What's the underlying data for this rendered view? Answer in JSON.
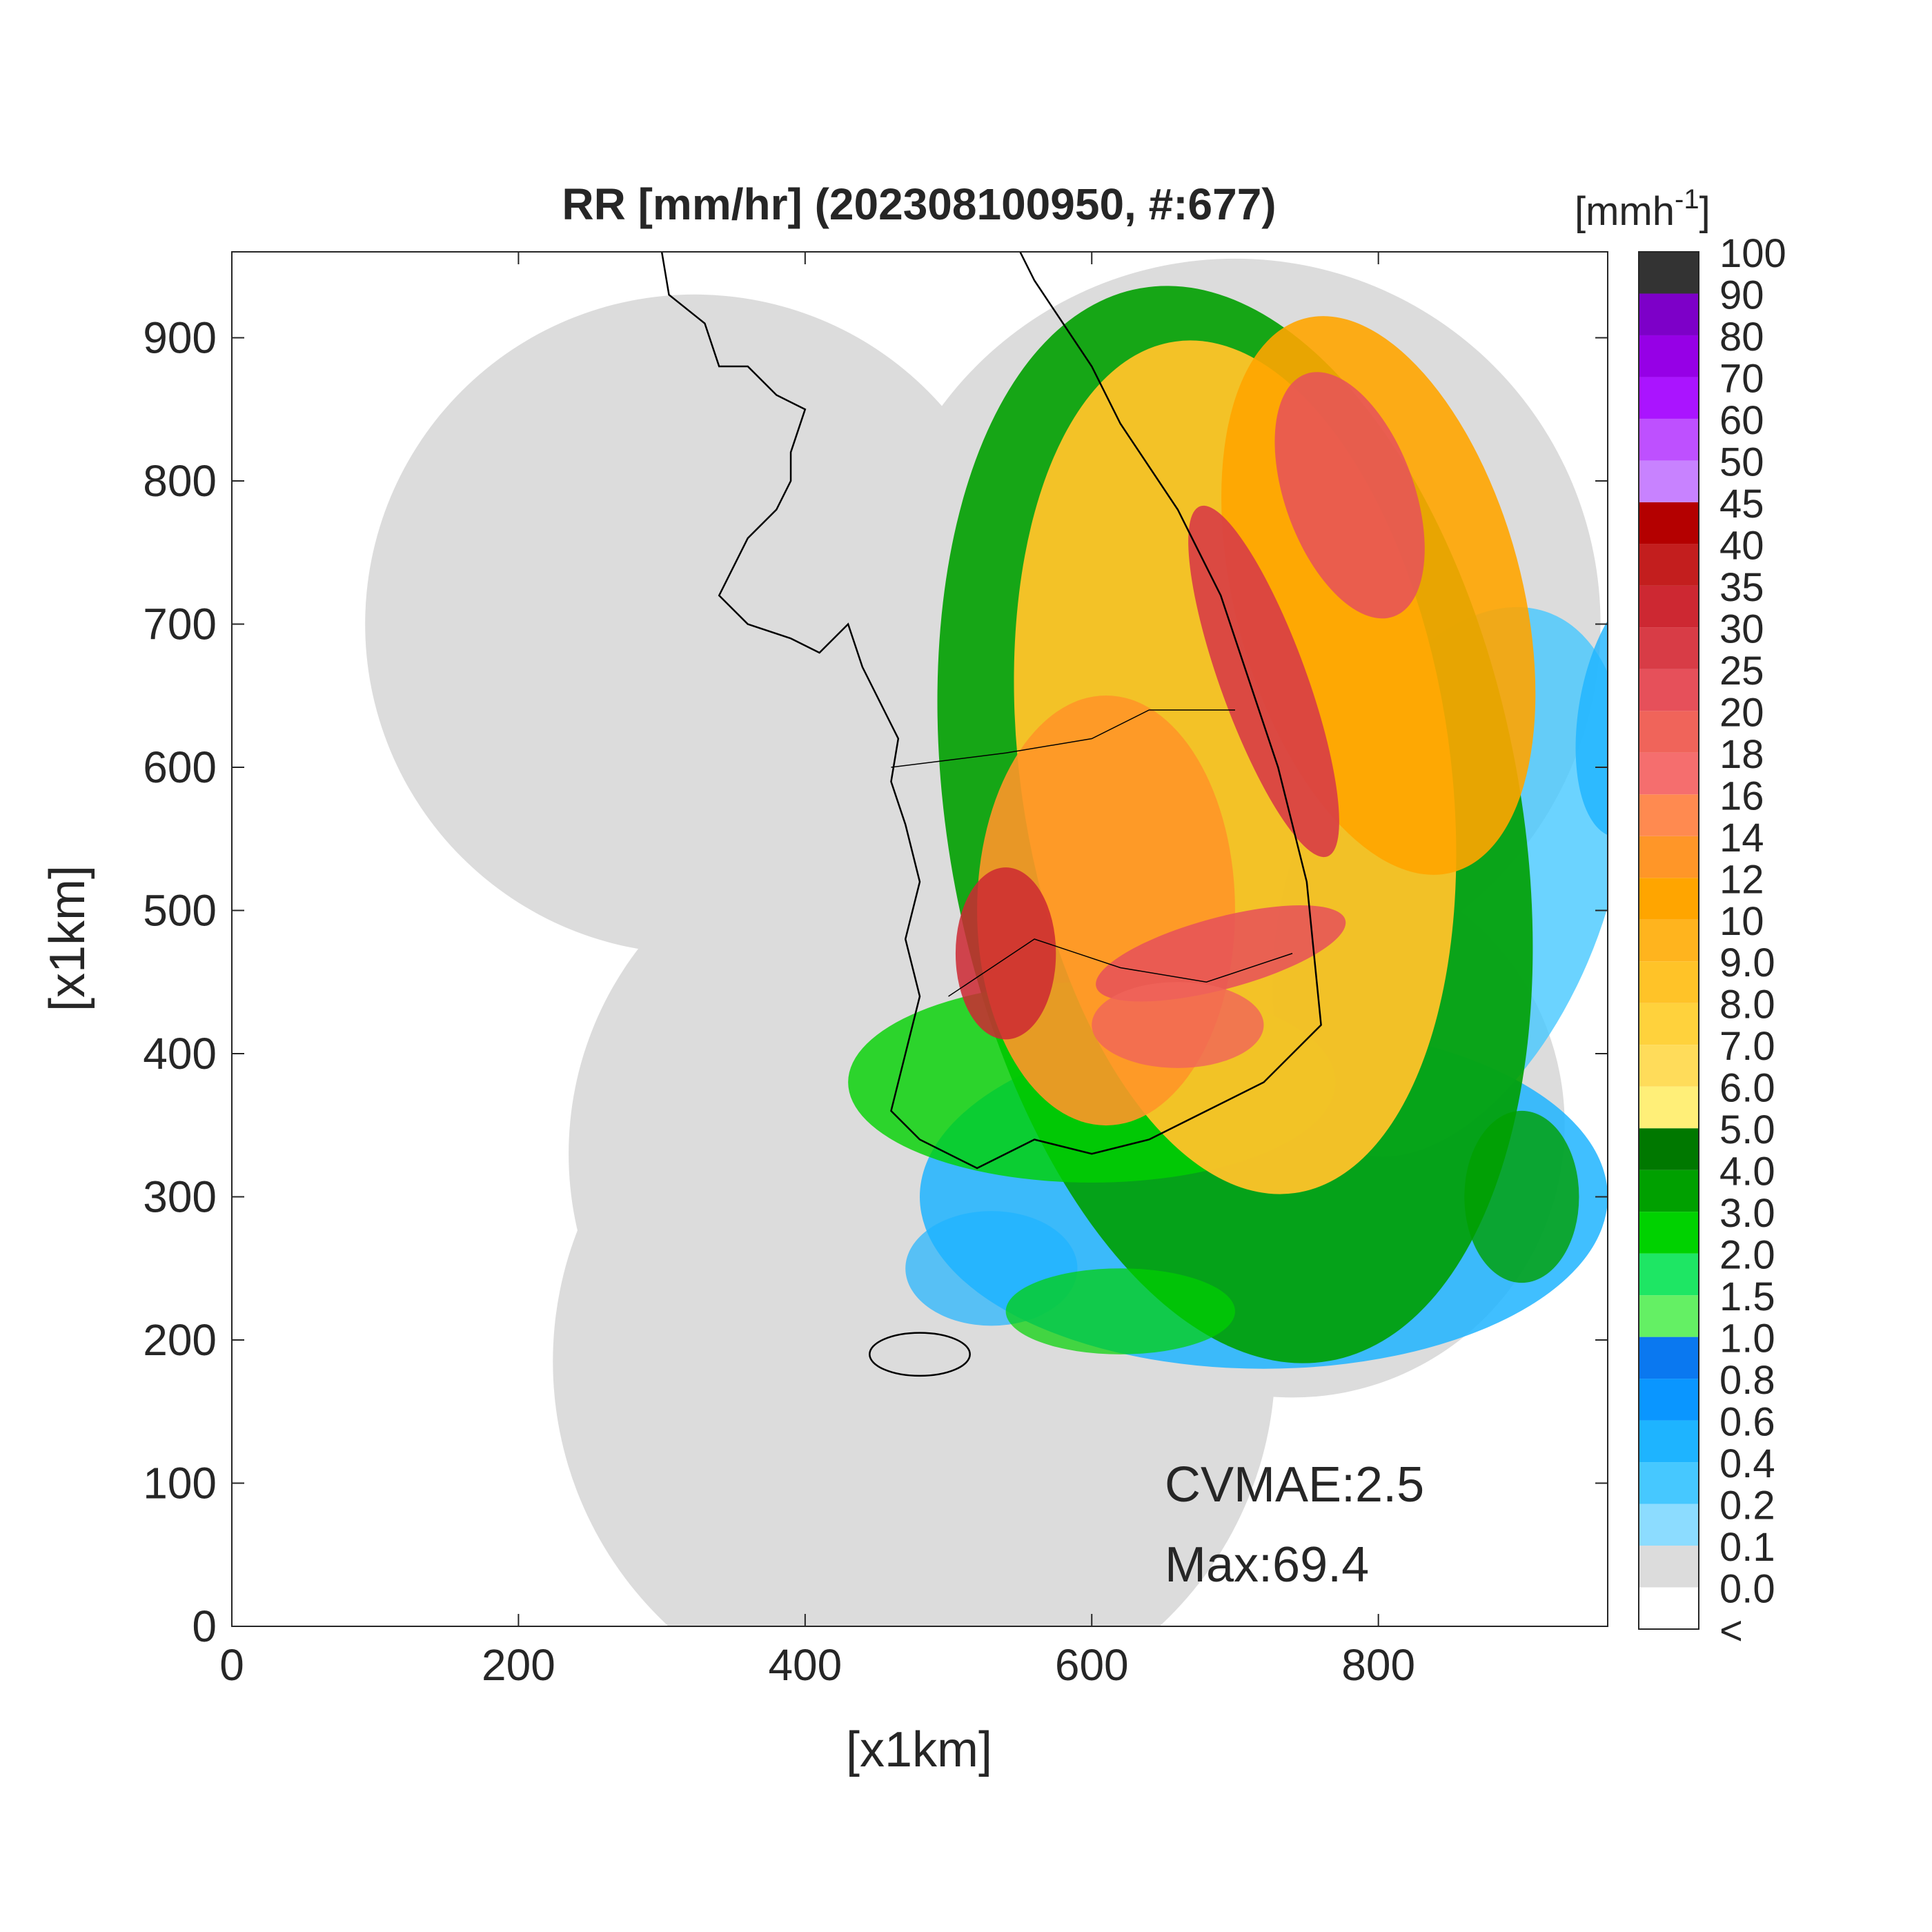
{
  "chart_data": {
    "type": "radar-map",
    "title": "RR [mm/hr] (202308100950, #:677)",
    "xlabel": "[x1km]",
    "ylabel": "[x1km]",
    "xlim": [
      0,
      960
    ],
    "ylim": [
      0,
      960
    ],
    "xticks": [
      0,
      200,
      400,
      600,
      800
    ],
    "yticks": [
      0,
      100,
      200,
      300,
      400,
      500,
      600,
      700,
      800,
      900
    ],
    "annotations": [
      "CVMAE:2.5",
      "Max:69.4"
    ],
    "colorbar": {
      "unit": [
        "[mmh",
        "-1",
        "]"
      ],
      "under_label": "<",
      "levels": [
        {
          "value": 0,
          "label": "0.0"
        },
        0.1,
        0.2,
        0.4,
        0.6,
        0.8,
        {
          "value": 1,
          "label": "1.0"
        },
        1.5,
        {
          "value": 2,
          "label": "2.0"
        },
        {
          "value": 3,
          "label": "3.0"
        },
        {
          "value": 4,
          "label": "4.0"
        },
        {
          "value": 5,
          "label": "5.0"
        },
        {
          "value": 6,
          "label": "6.0"
        },
        {
          "value": 7,
          "label": "7.0"
        },
        {
          "value": 8,
          "label": "8.0"
        },
        {
          "value": 9,
          "label": "9.0"
        },
        10,
        12,
        14,
        16,
        18,
        20,
        25,
        30,
        35,
        40,
        45,
        50,
        60,
        70,
        80,
        90,
        100
      ],
      "colors": [
        "#ffffff",
        "#dcdcdc",
        "#8cdcff",
        "#46c8ff",
        "#1eb4ff",
        "#0a96ff",
        "#0a78f0",
        "#64f064",
        "#1ee664",
        "#00d200",
        "#00a000",
        "#007800",
        "#ffef78",
        "#ffdc5a",
        "#ffd23c",
        "#ffc328",
        "#ffb41e",
        "#ffa500",
        "#ff9628",
        "#ff8a50",
        "#f56e6e",
        "#f0645a",
        "#e6505a",
        "#d83c46",
        "#cd2832",
        "#c31e1e",
        "#b40000",
        "#c882ff",
        "#be50ff",
        "#aa14ff",
        "#9600e6",
        "#7d00c8",
        "#333333"
      ]
    }
  }
}
